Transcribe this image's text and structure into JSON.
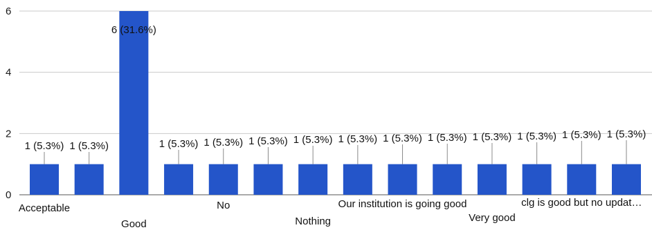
{
  "chart_data": {
    "type": "bar",
    "categories": [
      "Acceptable",
      "",
      "Good",
      "",
      "No",
      "",
      "Nothing",
      "",
      "Our institution is going good",
      "",
      "Very good",
      "",
      "clg is good but no updat…",
      ""
    ],
    "values": [
      1,
      1,
      6,
      1,
      1,
      1,
      1,
      1,
      1,
      1,
      1,
      1,
      1,
      1
    ],
    "data_labels": [
      "1 (5.3%)",
      "1 (5.3%)",
      "6 (31.6%)",
      "1 (5.3%)",
      "1 (5.3%)",
      "1 (5.3%)",
      "1 (5.3%)",
      "1 (5.3%)",
      "1 (5.3%)",
      "1 (5.3%)",
      "1 (5.3%)",
      "1 (5.3%)",
      "1 (5.3%)",
      "1 (5.3%)"
    ],
    "yticks": [
      0,
      2,
      4,
      6
    ],
    "ylim": [
      0,
      6
    ],
    "grid": true,
    "colors": {
      "bar": "#2455c9"
    }
  }
}
